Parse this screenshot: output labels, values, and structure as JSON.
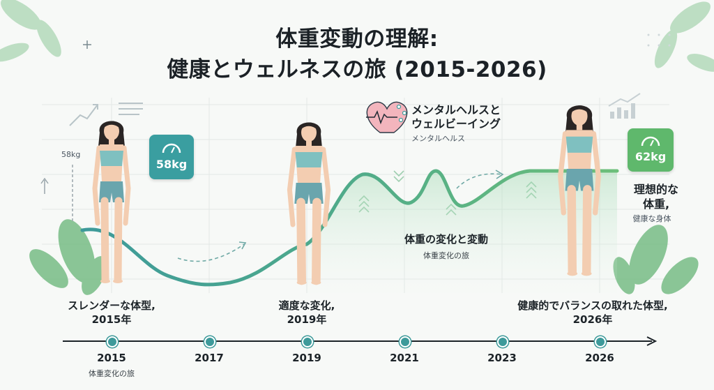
{
  "title": {
    "line1": "体重変動の理解:",
    "line2": "健康とウェルネスの旅 (2015-2026)"
  },
  "figures": [
    {
      "caption_line1": "スレンダーな体型,",
      "caption_line2": "2015年",
      "weight_badge": "58kg"
    },
    {
      "caption_line1": "適度な変化,",
      "caption_line2": "2019年"
    },
    {
      "caption_line1": "健康的でバランスの取れた体型,",
      "caption_line2": "2026年",
      "weight_badge": "62kg"
    }
  ],
  "annotations": {
    "wellbeing_title_line1": "メンタルヘルスと",
    "wellbeing_title_line2": "ウェルビーイング",
    "wellbeing_sub": "メンタルヘルス",
    "fluctuation_title": "体重の変化と変動",
    "fluctuation_sub": "体重変化の旅",
    "ideal_line1": "理想的な",
    "ideal_line2": "体重,",
    "ideal_sub": "健康な身体",
    "left_axis_label": "58kg"
  },
  "timeline": {
    "years": [
      "2015",
      "2017",
      "2019",
      "2021",
      "2023",
      "2026"
    ],
    "first_sub": "体重変化の旅"
  },
  "colors": {
    "curve_teal": "#3d9a9a",
    "curve_green": "#6cbf7a",
    "badge_teal": "#3a9ea0",
    "badge_green": "#5fb86c",
    "figure_top": "#7fc0c0",
    "figure_bottom": "#6aa5ad",
    "skin": "#f3cdb1",
    "hair": "#2a2524",
    "leaf": "#7dbf86"
  }
}
